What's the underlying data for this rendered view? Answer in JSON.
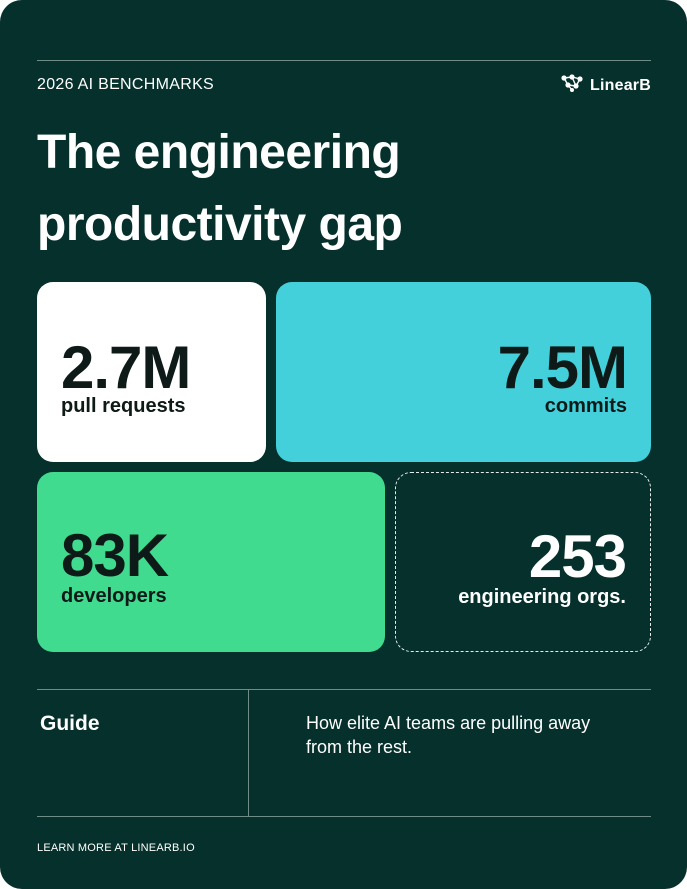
{
  "header": {
    "eyebrow": "2026 AI BENCHMARKS",
    "brand_name": "LinearB",
    "brand_icon": "linearb-logo-icon"
  },
  "title": {
    "line1": "The engineering",
    "line2": "productivity gap"
  },
  "stats": [
    {
      "value": "2.7M",
      "label": "pull requests",
      "color": "#ffffff"
    },
    {
      "value": "7.5M",
      "label": "commits",
      "color": "#43d0da"
    },
    {
      "value": "83K",
      "label": "developers",
      "color": "#40db8f"
    },
    {
      "value": "253",
      "label": "engineering orgs.",
      "color": "transparent"
    }
  ],
  "guide": {
    "label": "Guide",
    "description": "How elite AI teams are pulling away from the rest."
  },
  "footer": {
    "text": "LEARN MORE AT LINEARB.IO"
  },
  "colors": {
    "background": "#05302c",
    "white": "#ffffff",
    "cyan": "#43d0da",
    "green": "#40db8f"
  }
}
